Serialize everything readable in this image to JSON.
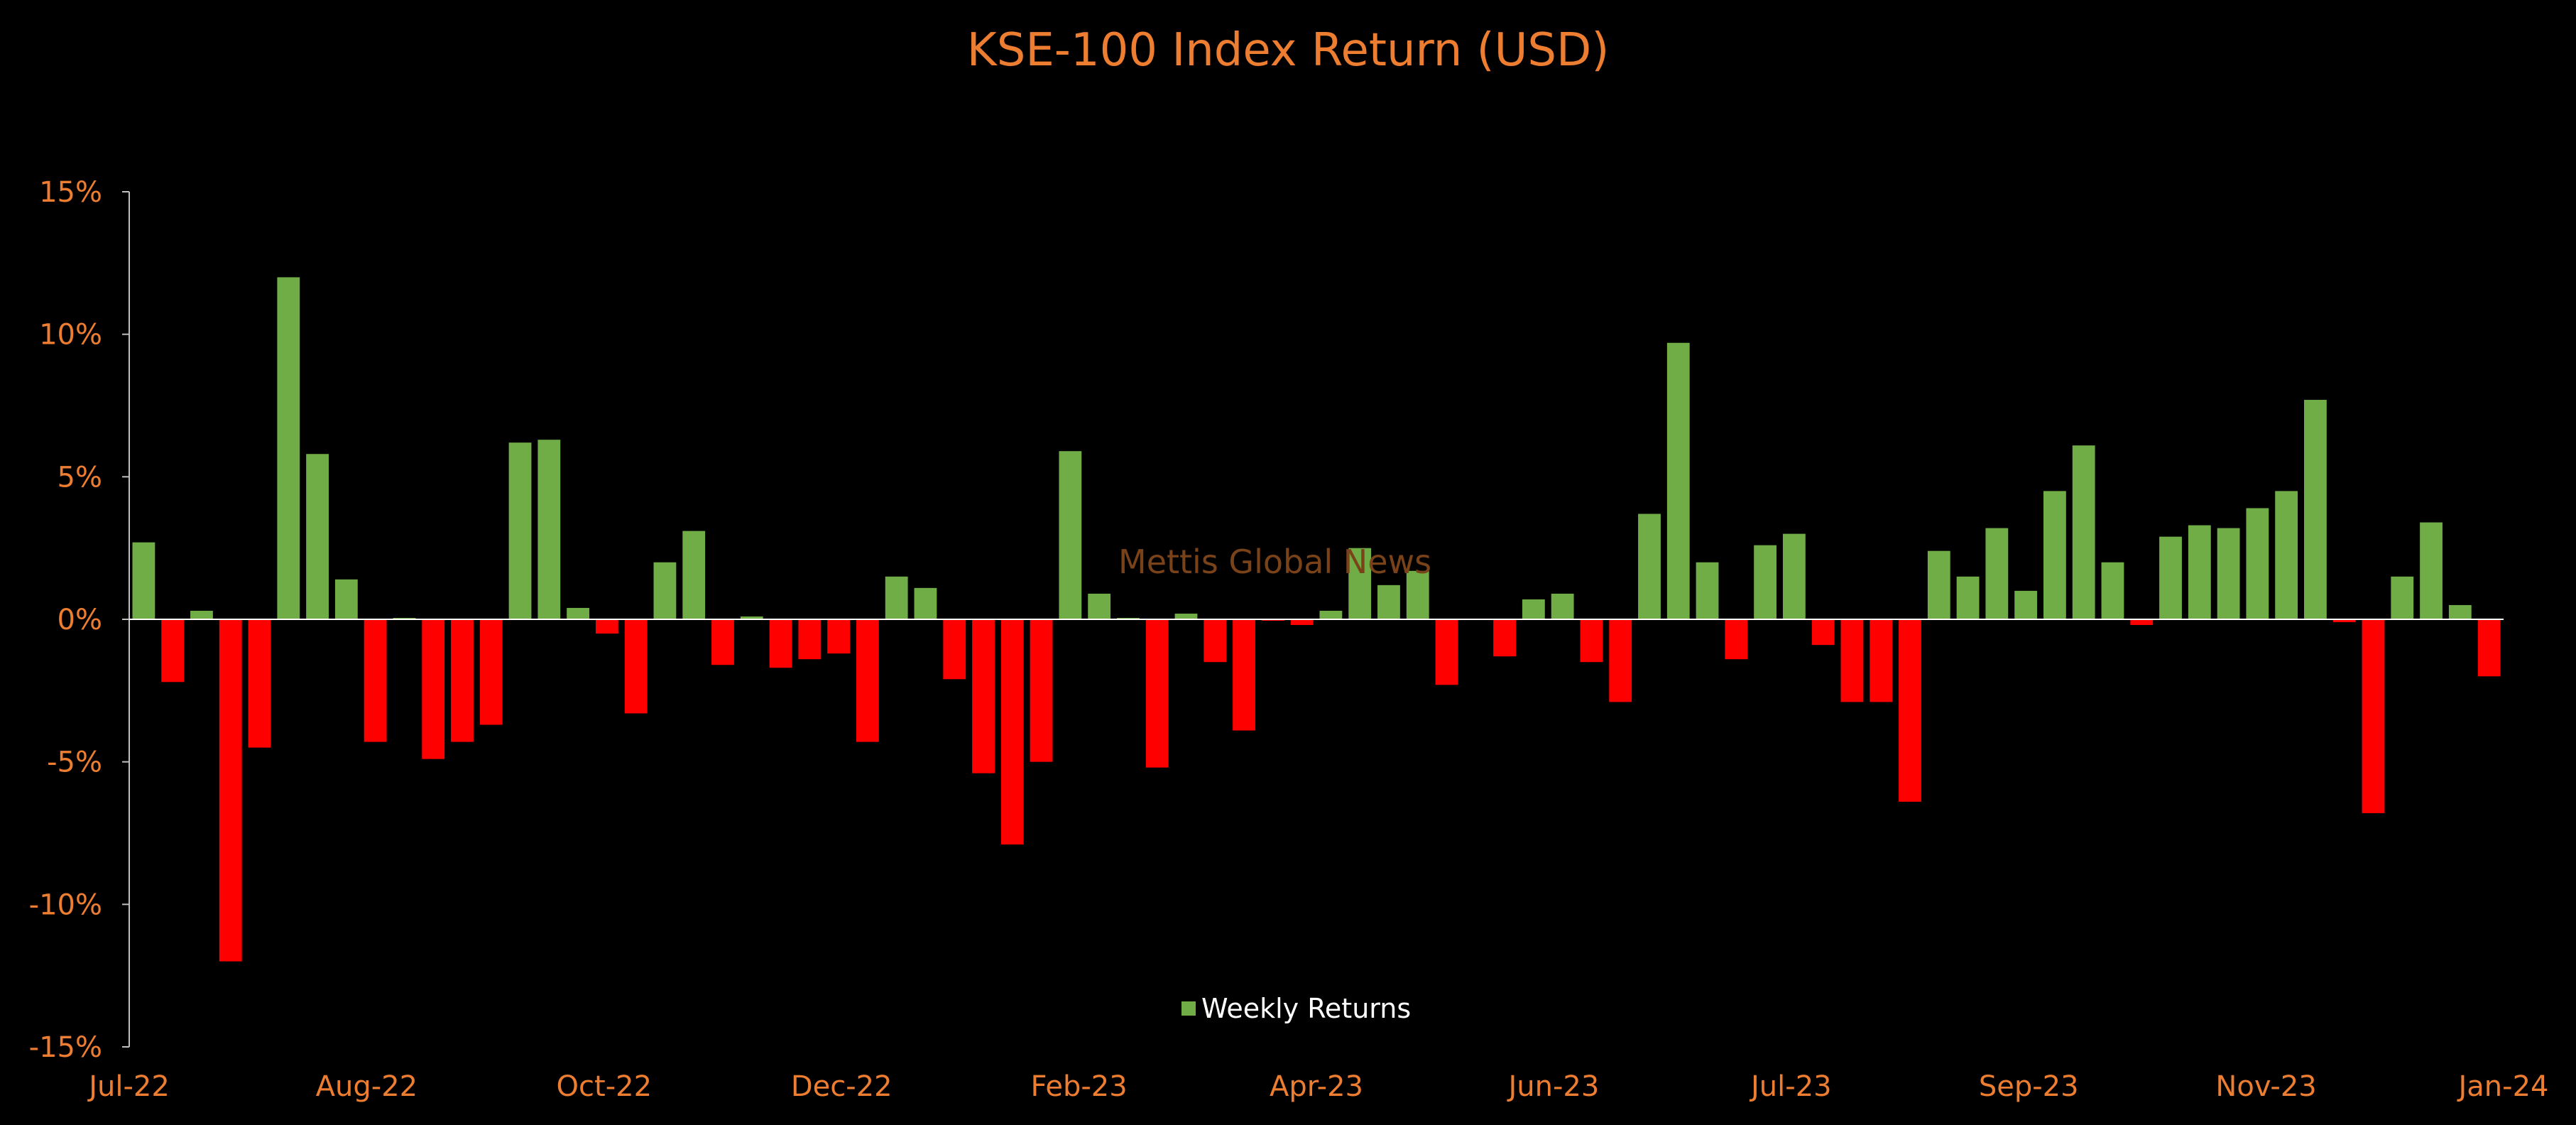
{
  "chart_data": {
    "type": "bar",
    "title": "KSE-100 Index Return (USD)",
    "watermark": "Mettis Global News",
    "ylim": [
      -15,
      15
    ],
    "y_ticks": [
      15,
      10,
      5,
      0,
      -5,
      -10,
      -15
    ],
    "y_tick_labels": [
      "15%",
      "10%",
      "5%",
      "0%",
      "-5%",
      "-10%",
      "-15%"
    ],
    "x_tick_labels": [
      "Jul-22",
      "Aug-22",
      "Oct-22",
      "Dec-22",
      "Feb-23",
      "Apr-23",
      "Jun-23",
      "Jul-23",
      "Sep-23",
      "Nov-23",
      "Jan-24"
    ],
    "grid": false,
    "legend_position": "bottom-center",
    "colors": {
      "positive": "#70AD47",
      "negative": "#FF0000",
      "text": "#ED7D31",
      "axis": "#BFBFBF"
    },
    "series": [
      {
        "name": "Weekly Returns",
        "values": [
          2.7,
          -2.2,
          0.3,
          -12.0,
          -4.5,
          12.0,
          5.8,
          1.4,
          -4.3,
          0.05,
          -4.9,
          -4.3,
          -3.7,
          6.2,
          6.3,
          0.4,
          -0.5,
          -3.3,
          2.0,
          3.1,
          -1.6,
          0.1,
          -1.7,
          -1.4,
          -1.2,
          -4.3,
          1.5,
          1.1,
          -2.1,
          -5.4,
          -7.9,
          -5.0,
          5.9,
          0.9,
          0.05,
          -5.2,
          0.2,
          -1.5,
          -3.9,
          -0.05,
          -0.2,
          0.3,
          2.5,
          1.2,
          1.7,
          -2.3,
          0.0,
          -1.3,
          0.7,
          0.9,
          -1.5,
          -2.9,
          3.7,
          9.7,
          2.0,
          -1.4,
          2.6,
          3.0,
          -0.9,
          -2.9,
          -2.9,
          -6.4,
          2.4,
          1.5,
          3.2,
          1.0,
          4.5,
          6.1,
          2.0,
          -0.2,
          2.9,
          3.3,
          3.2,
          3.9,
          4.5,
          7.7,
          -0.1,
          -6.8,
          1.5,
          3.4,
          0.5,
          -2.0
        ]
      }
    ]
  }
}
